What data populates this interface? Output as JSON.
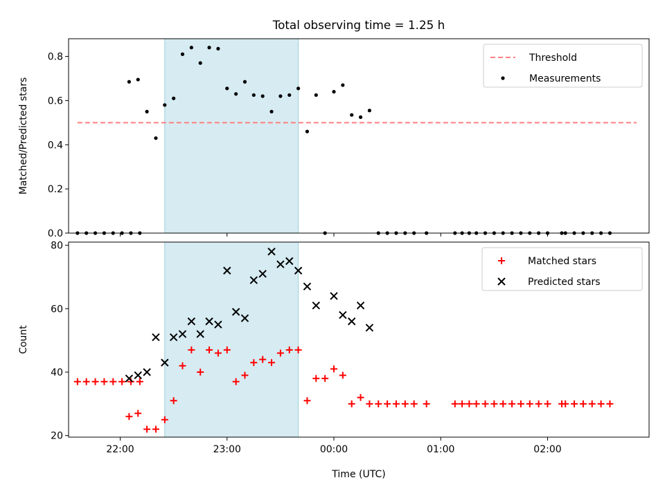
{
  "chart_data": [
    {
      "type": "scatter",
      "title": "Total observing time = 1.25 h",
      "xlabel": "",
      "ylabel": "Matched/Predicted stars",
      "xlim": [
        "21:31",
        "02:57"
      ],
      "ylim": [
        0,
        0.88
      ],
      "yticks": [
        "0.0",
        "0.2",
        "0.4",
        "0.6",
        "0.8"
      ],
      "xticks": [
        "22:00",
        "23:00",
        "00:00",
        "01:00",
        "02:00"
      ],
      "x_tick_labels_visible": false,
      "highlight_span": {
        "start": "22:25",
        "end": "23:40",
        "color": "#add8e6"
      },
      "legend_position": "upper right",
      "series": [
        {
          "name": "Threshold",
          "kind": "line",
          "style": "dashed",
          "color": "#ff7f7f",
          "points": [
            [
              "21:36",
              0.5
            ],
            [
              "02:50",
              0.5
            ]
          ]
        },
        {
          "name": "Measurements",
          "kind": "scatter",
          "marker": "dot",
          "color": "#000000",
          "points": [
            [
              "21:36",
              0
            ],
            [
              "21:41",
              0
            ],
            [
              "21:46",
              0
            ],
            [
              "21:51",
              0
            ],
            [
              "21:56",
              0
            ],
            [
              "22:01",
              0
            ],
            [
              "22:06",
              0
            ],
            [
              "22:11",
              0
            ],
            [
              "22:05",
              0.685
            ],
            [
              "22:10",
              0.695
            ],
            [
              "22:15",
              0.55
            ],
            [
              "22:20",
              0.43
            ],
            [
              "22:25",
              0.58
            ],
            [
              "22:30",
              0.61
            ],
            [
              "22:35",
              0.81
            ],
            [
              "22:40",
              0.84
            ],
            [
              "22:45",
              0.77
            ],
            [
              "22:50",
              0.84
            ],
            [
              "22:55",
              0.835
            ],
            [
              "23:00",
              0.655
            ],
            [
              "23:05",
              0.63
            ],
            [
              "23:10",
              0.685
            ],
            [
              "23:15",
              0.625
            ],
            [
              "23:20",
              0.62
            ],
            [
              "23:25",
              0.55
            ],
            [
              "23:30",
              0.62
            ],
            [
              "23:35",
              0.625
            ],
            [
              "23:40",
              0.655
            ],
            [
              "23:45",
              0.46
            ],
            [
              "23:50",
              0.625
            ],
            [
              "23:55",
              0
            ],
            [
              "00:00",
              0.64
            ],
            [
              "00:05",
              0.67
            ],
            [
              "00:10",
              0.535
            ],
            [
              "00:15",
              0.525
            ],
            [
              "00:20",
              0.555
            ],
            [
              "00:25",
              0
            ],
            [
              "00:30",
              0
            ],
            [
              "00:35",
              0
            ],
            [
              "00:40",
              0
            ],
            [
              "00:45",
              0
            ],
            [
              "00:52",
              0
            ],
            [
              "01:08",
              0
            ],
            [
              "01:12",
              0
            ],
            [
              "01:16",
              0
            ],
            [
              "01:20",
              0
            ],
            [
              "01:25",
              0
            ],
            [
              "01:30",
              0
            ],
            [
              "01:35",
              0
            ],
            [
              "01:40",
              0
            ],
            [
              "01:45",
              0
            ],
            [
              "01:50",
              0
            ],
            [
              "01:55",
              0
            ],
            [
              "02:00",
              0
            ],
            [
              "02:08",
              0
            ],
            [
              "02:10",
              0
            ],
            [
              "02:15",
              0
            ],
            [
              "02:20",
              0
            ],
            [
              "02:25",
              0
            ],
            [
              "02:30",
              0
            ],
            [
              "02:35",
              0
            ]
          ]
        }
      ]
    },
    {
      "type": "scatter",
      "title": "",
      "xlabel": "Time (UTC)",
      "ylabel": "Count",
      "xlim": [
        "21:31",
        "02:57"
      ],
      "ylim": [
        19.5,
        81
      ],
      "yticks": [
        "20",
        "40",
        "60",
        "80"
      ],
      "xticks": [
        "22:00",
        "23:00",
        "00:00",
        "01:00",
        "02:00"
      ],
      "highlight_span": {
        "start": "22:25",
        "end": "23:40",
        "color": "#add8e6"
      },
      "legend_position": "upper right",
      "series": [
        {
          "name": "Matched stars",
          "kind": "scatter",
          "marker": "plus",
          "color": "#ff0000",
          "points": [
            [
              "21:36",
              37
            ],
            [
              "21:41",
              37
            ],
            [
              "21:46",
              37
            ],
            [
              "21:51",
              37
            ],
            [
              "21:56",
              37
            ],
            [
              "22:01",
              37
            ],
            [
              "22:06",
              37
            ],
            [
              "22:11",
              37
            ],
            [
              "22:05",
              26
            ],
            [
              "22:10",
              27
            ],
            [
              "22:15",
              22
            ],
            [
              "22:20",
              22
            ],
            [
              "22:25",
              25
            ],
            [
              "22:30",
              31
            ],
            [
              "22:35",
              42
            ],
            [
              "22:40",
              47
            ],
            [
              "22:45",
              40
            ],
            [
              "22:50",
              47
            ],
            [
              "22:55",
              46
            ],
            [
              "23:00",
              47
            ],
            [
              "23:05",
              37
            ],
            [
              "23:10",
              39
            ],
            [
              "23:15",
              43
            ],
            [
              "23:20",
              44
            ],
            [
              "23:25",
              43
            ],
            [
              "23:30",
              46
            ],
            [
              "23:35",
              47
            ],
            [
              "23:40",
              47
            ],
            [
              "23:45",
              31
            ],
            [
              "23:50",
              38
            ],
            [
              "23:55",
              38
            ],
            [
              "00:00",
              41
            ],
            [
              "00:05",
              39
            ],
            [
              "00:10",
              30
            ],
            [
              "00:15",
              32
            ],
            [
              "00:20",
              30
            ],
            [
              "00:25",
              30
            ],
            [
              "00:30",
              30
            ],
            [
              "00:35",
              30
            ],
            [
              "00:40",
              30
            ],
            [
              "00:45",
              30
            ],
            [
              "00:52",
              30
            ],
            [
              "01:08",
              30
            ],
            [
              "01:12",
              30
            ],
            [
              "01:16",
              30
            ],
            [
              "01:20",
              30
            ],
            [
              "01:25",
              30
            ],
            [
              "01:30",
              30
            ],
            [
              "01:35",
              30
            ],
            [
              "01:40",
              30
            ],
            [
              "01:45",
              30
            ],
            [
              "01:50",
              30
            ],
            [
              "01:55",
              30
            ],
            [
              "02:00",
              30
            ],
            [
              "02:08",
              30
            ],
            [
              "02:10",
              30
            ],
            [
              "02:15",
              30
            ],
            [
              "02:20",
              30
            ],
            [
              "02:25",
              30
            ],
            [
              "02:30",
              30
            ],
            [
              "02:35",
              30
            ]
          ]
        },
        {
          "name": "Predicted stars",
          "kind": "scatter",
          "marker": "x",
          "color": "#000000",
          "points": [
            [
              "22:05",
              38
            ],
            [
              "22:10",
              39
            ],
            [
              "22:15",
              40
            ],
            [
              "22:20",
              51
            ],
            [
              "22:25",
              43
            ],
            [
              "22:30",
              51
            ],
            [
              "22:35",
              52
            ],
            [
              "22:40",
              56
            ],
            [
              "22:45",
              52
            ],
            [
              "22:50",
              56
            ],
            [
              "22:55",
              55
            ],
            [
              "23:00",
              72
            ],
            [
              "23:05",
              59
            ],
            [
              "23:10",
              57
            ],
            [
              "23:15",
              69
            ],
            [
              "23:20",
              71
            ],
            [
              "23:25",
              78
            ],
            [
              "23:30",
              74
            ],
            [
              "23:35",
              75
            ],
            [
              "23:40",
              72
            ],
            [
              "23:45",
              67
            ],
            [
              "23:50",
              61
            ],
            [
              "00:00",
              64
            ],
            [
              "00:05",
              58
            ],
            [
              "00:10",
              56
            ],
            [
              "00:15",
              61
            ],
            [
              "00:20",
              54
            ]
          ]
        }
      ]
    }
  ]
}
